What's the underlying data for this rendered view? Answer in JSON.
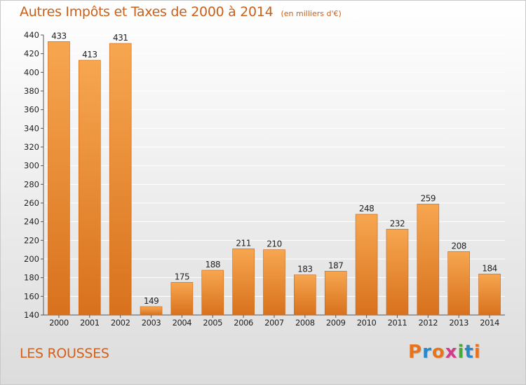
{
  "header": {
    "title": "Autres Impôts et Taxes de 2000 à 2014",
    "subtitle": "(en milliers d'€)"
  },
  "footer": {
    "commune": "LES ROUSSES",
    "logo": "Proxiti",
    "logo_colors": [
      "#e8731a",
      "#2a88c8",
      "#e8731a",
      "#d43a8c",
      "#4aa83a",
      "#2a88c8",
      "#e8731a"
    ]
  },
  "colors": {
    "bar_light": "#f7a650",
    "bar_dark": "#d8711d",
    "bar_edge": "#c96516",
    "title": "#c8601a",
    "grid": "#ffffff",
    "axis_text": "#222222"
  },
  "chart_data": {
    "type": "bar",
    "title": "Autres Impôts et Taxes de 2000 à 2014",
    "subtitle": "(en milliers d'€)",
    "categories": [
      "2000",
      "2001",
      "2002",
      "2003",
      "2004",
      "2005",
      "2006",
      "2007",
      "2008",
      "2009",
      "2010",
      "2011",
      "2012",
      "2013",
      "2014"
    ],
    "values": [
      433,
      413,
      431,
      149,
      175,
      188,
      211,
      210,
      183,
      187,
      248,
      232,
      259,
      208,
      184
    ],
    "ylim": [
      140,
      440
    ],
    "yticks": [
      140,
      160,
      180,
      200,
      220,
      240,
      260,
      280,
      300,
      320,
      340,
      360,
      380,
      400,
      420,
      440
    ],
    "grid": true,
    "data_labels": true
  }
}
